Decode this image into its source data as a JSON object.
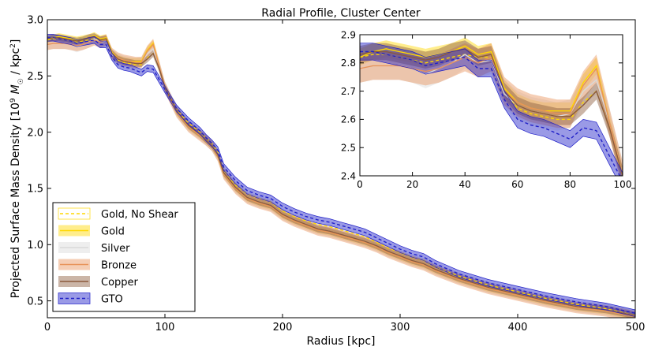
{
  "chart_data": [
    {
      "type": "line",
      "title": "Radial Profile, Cluster Center",
      "xlabel": "Radius [kpc]",
      "ylabel": "Projected Surface Mass Density [10",
      "ylabel_sup": "9",
      "ylabel_msun": "M",
      "ylabel_sun_sym": "☉",
      "ylabel_rest": " / kpc",
      "ylabel_sup2": "2",
      "ylabel_end": "]",
      "xlim": [
        0,
        500
      ],
      "ylim": [
        0.35,
        3.0
      ],
      "xticks": [
        0,
        100,
        200,
        300,
        400,
        500
      ],
      "xtick_labels": [
        "0",
        "100",
        "200",
        "300",
        "400",
        "500"
      ],
      "yticks": [
        0.5,
        1.0,
        1.5,
        2.0,
        2.5,
        3.0
      ],
      "ytick_labels": [
        "0.5",
        "1.0",
        "1.5",
        "2.0",
        "2.5",
        "3.0"
      ],
      "legend_position": "lower-left",
      "x": [
        0,
        5,
        10,
        15,
        20,
        25,
        30,
        35,
        40,
        45,
        50,
        55,
        60,
        65,
        70,
        75,
        80,
        85,
        90,
        95,
        100,
        110,
        120,
        130,
        135,
        140,
        145,
        150,
        160,
        170,
        180,
        190,
        200,
        210,
        220,
        230,
        240,
        250,
        260,
        270,
        280,
        290,
        300,
        310,
        320,
        330,
        350,
        375,
        400,
        425,
        450,
        475,
        500
      ],
      "series": [
        {
          "name": "Gold, No Shear",
          "color": "#ffd700",
          "style": "dashed",
          "values": [
            2.82,
            2.83,
            2.83,
            2.82,
            2.81,
            2.8,
            2.81,
            2.82,
            2.83,
            2.82,
            2.82,
            2.7,
            2.64,
            2.62,
            2.61,
            2.6,
            2.6,
            2.66,
            2.7,
            2.57,
            2.4,
            2.2,
            2.08,
            2.0,
            1.95,
            1.9,
            1.82,
            1.66,
            1.53,
            1.45,
            1.41,
            1.38,
            1.3,
            1.25,
            1.21,
            1.18,
            1.16,
            1.13,
            1.1,
            1.07,
            1.02,
            0.97,
            0.93,
            0.89,
            0.86,
            0.8,
            0.72,
            0.64,
            0.58,
            0.52,
            0.47,
            0.43,
            0.37
          ],
          "band": null
        },
        {
          "name": "Gold",
          "color": "#ffd700",
          "style": "solid",
          "values": [
            2.82,
            2.84,
            2.85,
            2.84,
            2.83,
            2.82,
            2.83,
            2.84,
            2.86,
            2.83,
            2.84,
            2.71,
            2.66,
            2.64,
            2.63,
            2.63,
            2.63,
            2.73,
            2.79,
            2.59,
            2.4,
            2.18,
            2.05,
            1.97,
            1.93,
            1.88,
            1.79,
            1.63,
            1.5,
            1.41,
            1.37,
            1.34,
            1.26,
            1.21,
            1.17,
            1.13,
            1.11,
            1.08,
            1.05,
            1.02,
            0.98,
            0.93,
            0.89,
            0.85,
            0.82,
            0.77,
            0.69,
            0.61,
            0.55,
            0.49,
            0.44,
            0.41,
            0.36
          ],
          "band": 0.03
        },
        {
          "name": "Silver",
          "color": "#d9d9d9",
          "style": "solid",
          "values": [
            2.78,
            2.79,
            2.79,
            2.79,
            2.78,
            2.76,
            2.78,
            2.8,
            2.83,
            2.8,
            2.81,
            2.69,
            2.65,
            2.63,
            2.62,
            2.61,
            2.62,
            2.7,
            2.74,
            2.59,
            2.4,
            2.19,
            2.06,
            1.98,
            1.93,
            1.88,
            1.8,
            1.64,
            1.51,
            1.42,
            1.38,
            1.35,
            1.27,
            1.22,
            1.18,
            1.14,
            1.12,
            1.09,
            1.06,
            1.03,
            0.99,
            0.94,
            0.9,
            0.86,
            0.83,
            0.78,
            0.7,
            0.62,
            0.56,
            0.5,
            0.45,
            0.42,
            0.37
          ],
          "band": 0.05
        },
        {
          "name": "Bronze",
          "color": "#e8935a",
          "style": "solid",
          "values": [
            2.78,
            2.79,
            2.79,
            2.79,
            2.78,
            2.77,
            2.78,
            2.8,
            2.82,
            2.8,
            2.82,
            2.7,
            2.66,
            2.64,
            2.63,
            2.62,
            2.62,
            2.72,
            2.78,
            2.59,
            2.4,
            2.18,
            2.05,
            1.97,
            1.93,
            1.88,
            1.79,
            1.63,
            1.5,
            1.41,
            1.37,
            1.34,
            1.26,
            1.21,
            1.17,
            1.13,
            1.11,
            1.08,
            1.05,
            1.02,
            0.98,
            0.93,
            0.89,
            0.85,
            0.82,
            0.77,
            0.69,
            0.61,
            0.55,
            0.49,
            0.44,
            0.41,
            0.36
          ],
          "band": 0.05
        },
        {
          "name": "Copper",
          "color": "#8b5a3c",
          "style": "solid",
          "values": [
            2.83,
            2.84,
            2.84,
            2.83,
            2.82,
            2.81,
            2.82,
            2.84,
            2.85,
            2.82,
            2.83,
            2.7,
            2.65,
            2.63,
            2.62,
            2.61,
            2.61,
            2.65,
            2.7,
            2.57,
            2.4,
            2.19,
            2.06,
            1.98,
            1.93,
            1.88,
            1.8,
            1.64,
            1.51,
            1.42,
            1.38,
            1.35,
            1.27,
            1.22,
            1.18,
            1.14,
            1.12,
            1.09,
            1.06,
            1.03,
            0.99,
            0.94,
            0.9,
            0.86,
            0.83,
            0.78,
            0.7,
            0.62,
            0.56,
            0.5,
            0.45,
            0.42,
            0.37
          ],
          "band": 0.03
        },
        {
          "name": "GTO",
          "color": "#2020c8",
          "style": "dashed",
          "values": [
            2.84,
            2.84,
            2.83,
            2.82,
            2.81,
            2.79,
            2.8,
            2.81,
            2.82,
            2.78,
            2.78,
            2.67,
            2.6,
            2.58,
            2.57,
            2.55,
            2.53,
            2.57,
            2.56,
            2.47,
            2.38,
            2.21,
            2.1,
            2.01,
            1.95,
            1.9,
            1.84,
            1.69,
            1.57,
            1.48,
            1.44,
            1.41,
            1.34,
            1.29,
            1.25,
            1.22,
            1.2,
            1.17,
            1.14,
            1.11,
            1.06,
            1.01,
            0.96,
            0.92,
            0.89,
            0.83,
            0.74,
            0.66,
            0.6,
            0.54,
            0.49,
            0.45,
            0.39
          ],
          "band": 0.03
        }
      ]
    },
    {
      "type": "line",
      "title": "",
      "inset_of": "Radial Profile, Cluster Center",
      "xlabel": "",
      "ylabel": "",
      "xlim": [
        0,
        100
      ],
      "ylim": [
        2.4,
        2.9
      ],
      "xticks": [
        0,
        20,
        40,
        60,
        80,
        100
      ],
      "xtick_labels": [
        "0",
        "20",
        "40",
        "60",
        "80",
        "100"
      ],
      "yticks": [
        2.4,
        2.5,
        2.6,
        2.7,
        2.8,
        2.9
      ],
      "ytick_labels": [
        "2.4",
        "2.5",
        "2.6",
        "2.7",
        "2.8",
        "2.9"
      ],
      "series_ref": "same series as main chart, restricted to x <= 100"
    }
  ]
}
